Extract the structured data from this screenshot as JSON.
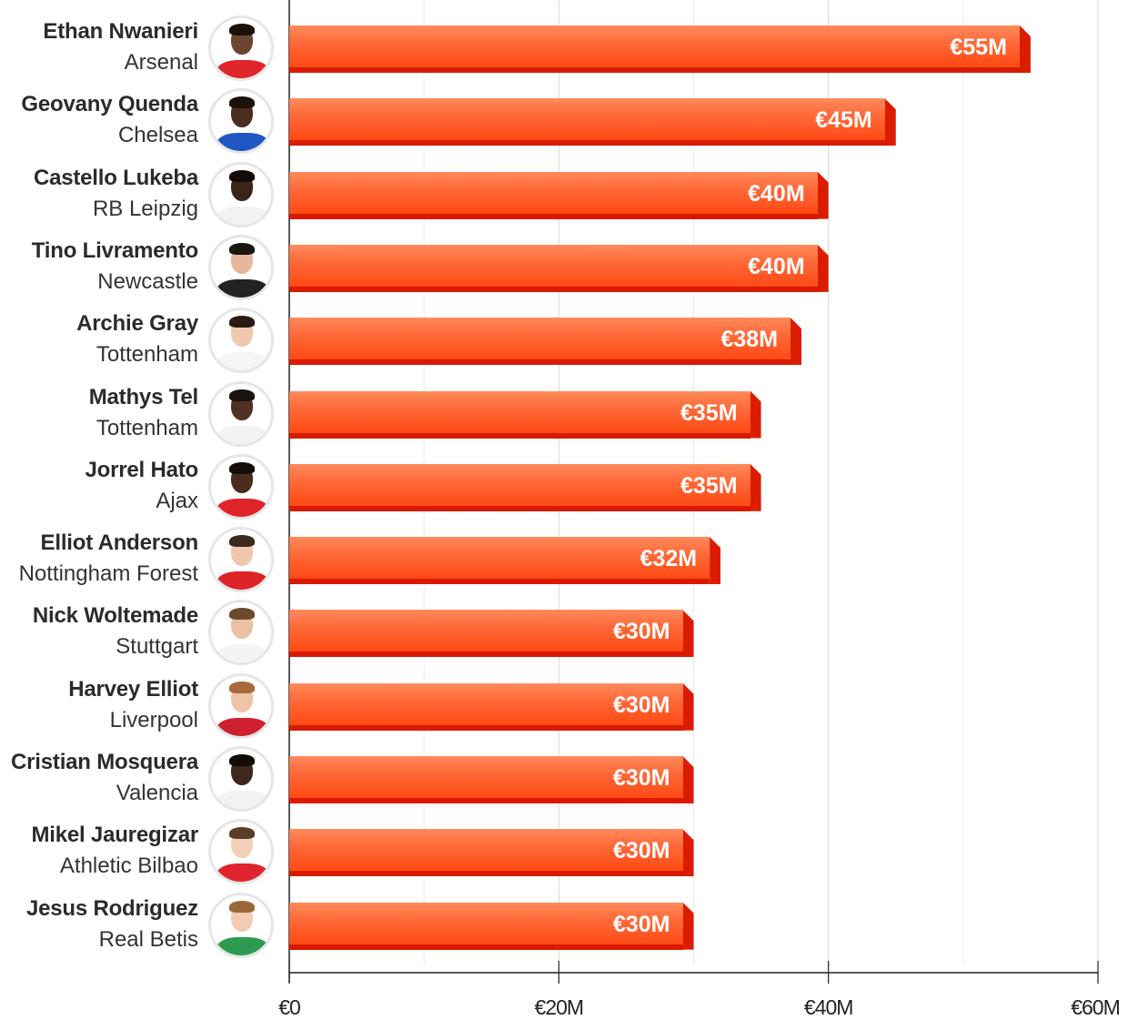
{
  "chart_data": {
    "type": "bar",
    "orientation": "horizontal",
    "title": "",
    "xlabel": "",
    "ylabel": "",
    "xlim": [
      0,
      60
    ],
    "unit": "€M",
    "x_ticks": [
      0,
      20,
      40,
      60
    ],
    "x_tick_labels": [
      "€0",
      "€20M",
      "€40M",
      "€60M"
    ],
    "minor_gridlines": [
      10,
      30,
      50
    ],
    "grid": true,
    "categories": [
      {
        "name": "Ethan Nwanieri",
        "club": "Arsenal"
      },
      {
        "name": "Geovany Quenda",
        "club": "Chelsea"
      },
      {
        "name": "Castello Lukeba",
        "club": "RB Leipzig"
      },
      {
        "name": "Tino Livramento",
        "club": "Newcastle"
      },
      {
        "name": "Archie Gray",
        "club": "Tottenham"
      },
      {
        "name": "Mathys Tel",
        "club": "Tottenham"
      },
      {
        "name": "Jorrel Hato",
        "club": "Ajax"
      },
      {
        "name": "Elliot Anderson",
        "club": "Nottingham Forest"
      },
      {
        "name": "Nick Woltemade",
        "club": "Stuttgart"
      },
      {
        "name": "Harvey Elliot",
        "club": "Liverpool"
      },
      {
        "name": "Cristian Mosquera",
        "club": "Valencia"
      },
      {
        "name": "Mikel Jauregizar",
        "club": "Athletic Bilbao"
      },
      {
        "name": "Jesus Rodriguez",
        "club": "Real Betis"
      }
    ],
    "values": [
      55,
      45,
      40,
      40,
      38,
      35,
      35,
      32,
      30,
      30,
      30,
      30,
      30
    ],
    "value_labels": [
      "€55M",
      "€45M",
      "€40M",
      "€40M",
      "€38M",
      "€35M",
      "€35M",
      "€32M",
      "€30M",
      "€30M",
      "€30M",
      "€30M",
      "€30M"
    ]
  },
  "colors": {
    "bar_top": "#ff8a5c",
    "bar_bottom": "#ff4a14",
    "bar_shadow": "#d91a00",
    "value_text": "#ffffff",
    "name_text": "#2b2b2b",
    "club_text": "#333333",
    "axis": "#222222",
    "grid": "#dddddd"
  },
  "avatars": [
    {
      "skin": "#6b4630",
      "hair": "#1a1209",
      "shirt": "#e0252b"
    },
    {
      "skin": "#4a2e20",
      "hair": "#1b120c",
      "shirt": "#1f56c4"
    },
    {
      "skin": "#3b2519",
      "hair": "#120b07",
      "shirt": "#f2f2f2"
    },
    {
      "skin": "#e6b79b",
      "hair": "#1b1512",
      "shirt": "#222222"
    },
    {
      "skin": "#f0c8b0",
      "hair": "#2a1c14",
      "shirt": "#f5f5f5"
    },
    {
      "skin": "#4f3122",
      "hair": "#1a120c",
      "shirt": "#f3f3f3"
    },
    {
      "skin": "#4a2c1e",
      "hair": "#140d09",
      "shirt": "#e1232b"
    },
    {
      "skin": "#f0c6ad",
      "hair": "#3a2a1e",
      "shirt": "#dd2228"
    },
    {
      "skin": "#ecc0a4",
      "hair": "#6b4a2e",
      "shirt": "#f4f4f4"
    },
    {
      "skin": "#efc3a5",
      "hair": "#a86a3a",
      "shirt": "#cf2030"
    },
    {
      "skin": "#3e271b",
      "hair": "#120b07",
      "shirt": "#f2f2f2"
    },
    {
      "skin": "#f3cfb8",
      "hair": "#5a3e2a",
      "shirt": "#e0242e"
    },
    {
      "skin": "#f2cbb2",
      "hair": "#9a6838",
      "shirt": "#2e9a52"
    }
  ]
}
